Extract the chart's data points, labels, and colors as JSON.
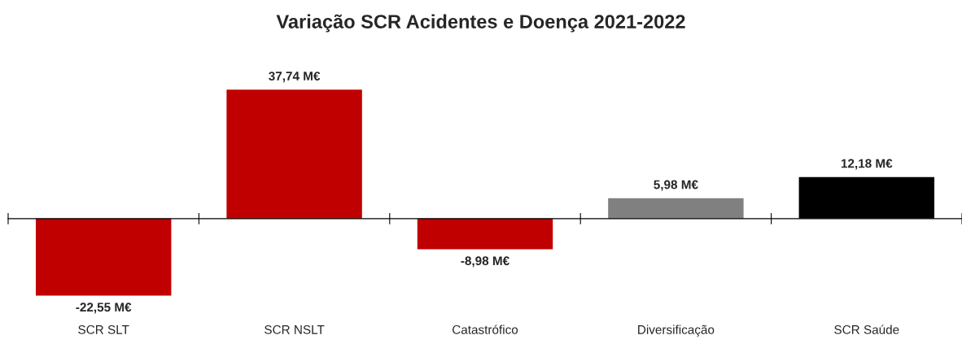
{
  "chart_data": {
    "type": "bar",
    "title": "Variação SCR Acidentes e Doença 2021-2022",
    "categories": [
      "SCR SLT",
      "SCR NSLT",
      "Catastrófico",
      "Diversificação",
      "SCR Saúde"
    ],
    "values": [
      -22.55,
      37.74,
      -8.98,
      5.98,
      12.18
    ],
    "colors": [
      "#c00000",
      "#c00000",
      "#c00000",
      "#808080",
      "#000000"
    ],
    "value_labels": [
      "-22,55 M€",
      "37,74 M€",
      "-8,98 M€",
      "5,98 M€",
      "12,18 M€"
    ],
    "grid": false,
    "legend": false
  }
}
